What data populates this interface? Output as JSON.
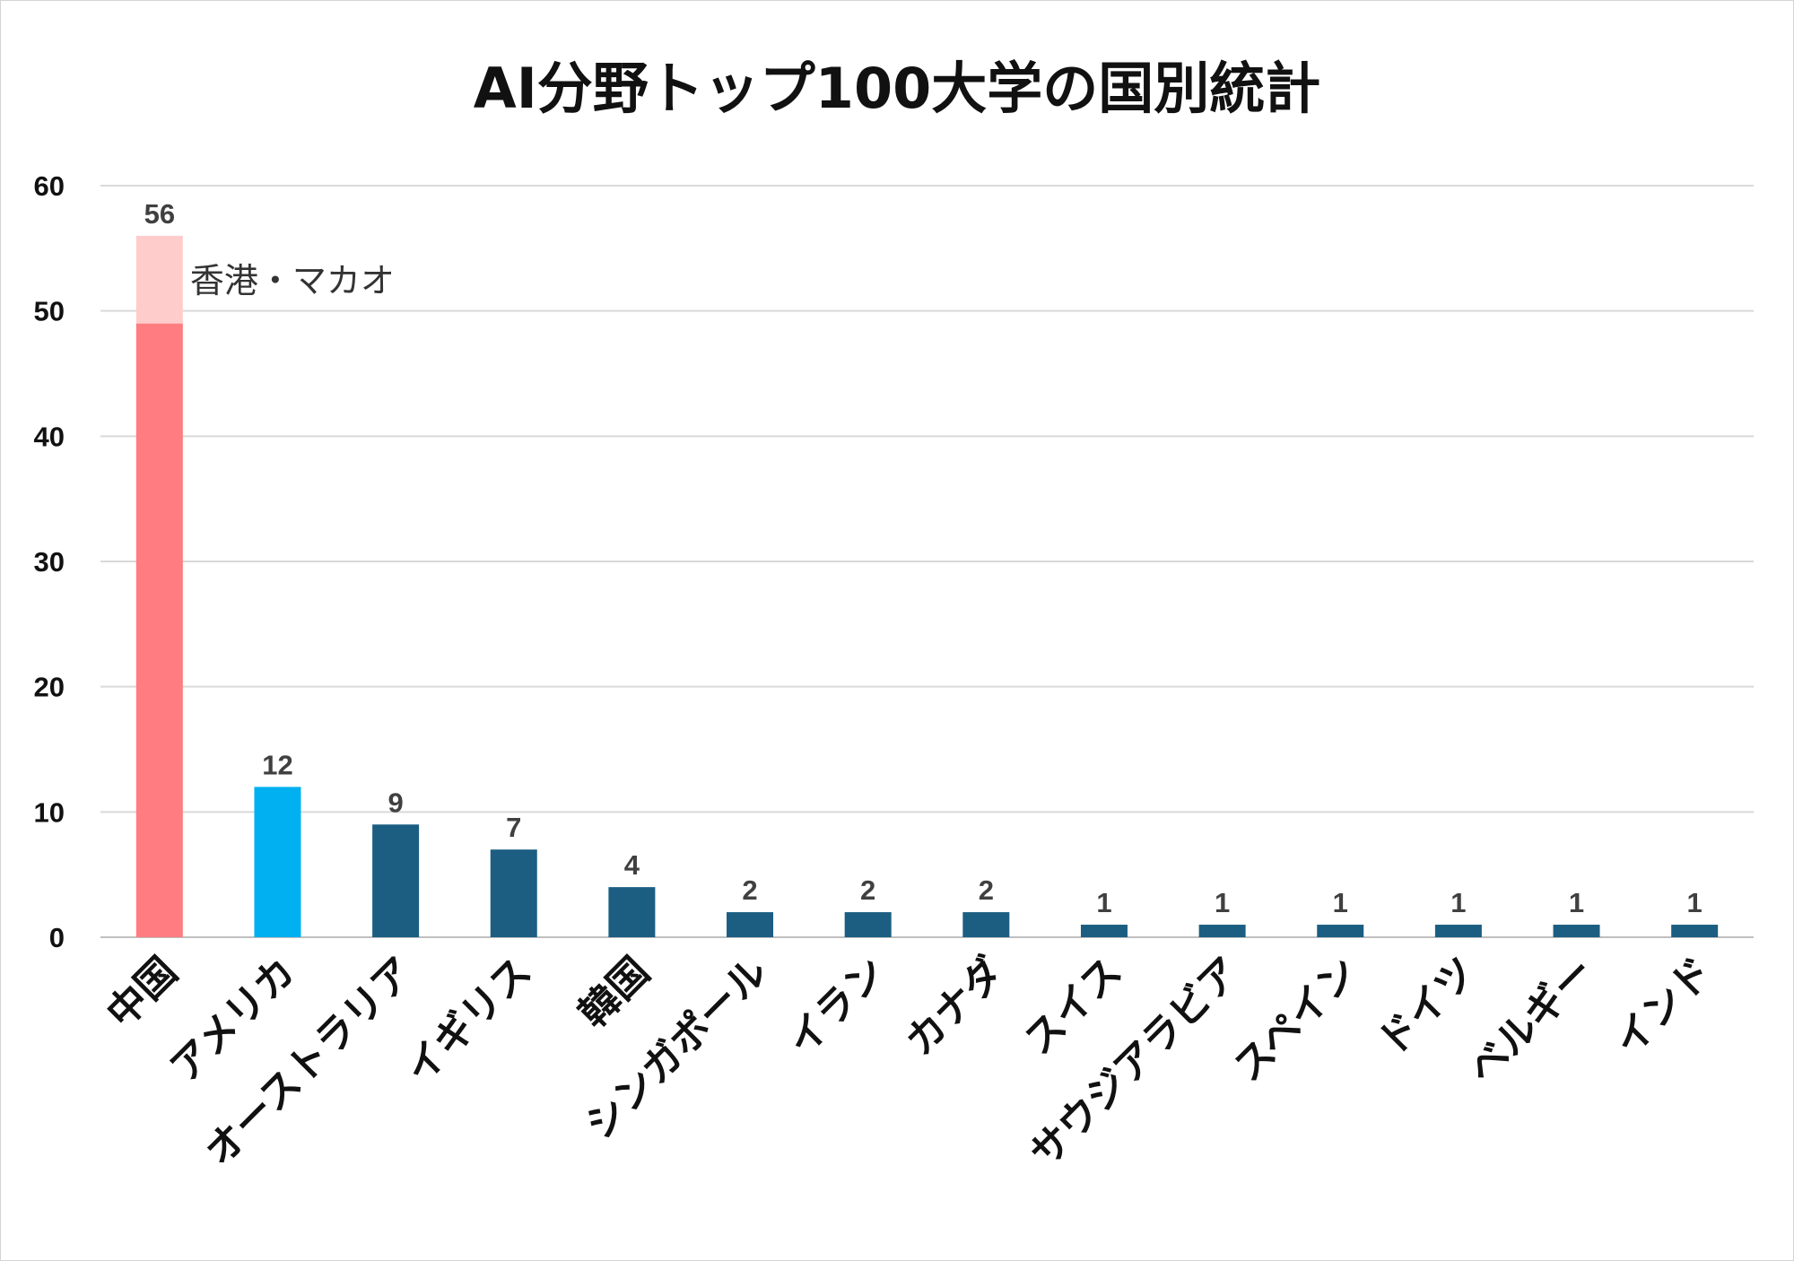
{
  "chart_data": {
    "type": "bar",
    "title": "AI分野トップ100大学の国別統計",
    "xlabel": "",
    "ylabel": "",
    "ylim": [
      0,
      60
    ],
    "yticks": [
      0,
      10,
      20,
      30,
      40,
      50,
      60
    ],
    "grid": true,
    "categories": [
      "中国",
      "アメリカ",
      "オーストラリア",
      "イギリス",
      "韓国",
      "シンガポール",
      "イラン",
      "カナダ",
      "スイス",
      "サウジアラビア",
      "スペイン",
      "ドイツ",
      "ベルギー",
      "インド"
    ],
    "values": [
      56,
      12,
      9,
      7,
      4,
      2,
      2,
      2,
      1,
      1,
      1,
      1,
      1,
      1
    ],
    "segments": [
      {
        "category": "中国",
        "value": 49,
        "color": "#ff7c80"
      },
      {
        "category": "中国",
        "label": "香港・マカオ",
        "value": 7,
        "color": "#ffcccc"
      }
    ],
    "colors": {
      "china": "#ff7c80",
      "china_hk_macau": "#ffcccc",
      "usa": "#00b0f0",
      "others": "#1b5e82",
      "grid": "#d9d9d9"
    }
  }
}
